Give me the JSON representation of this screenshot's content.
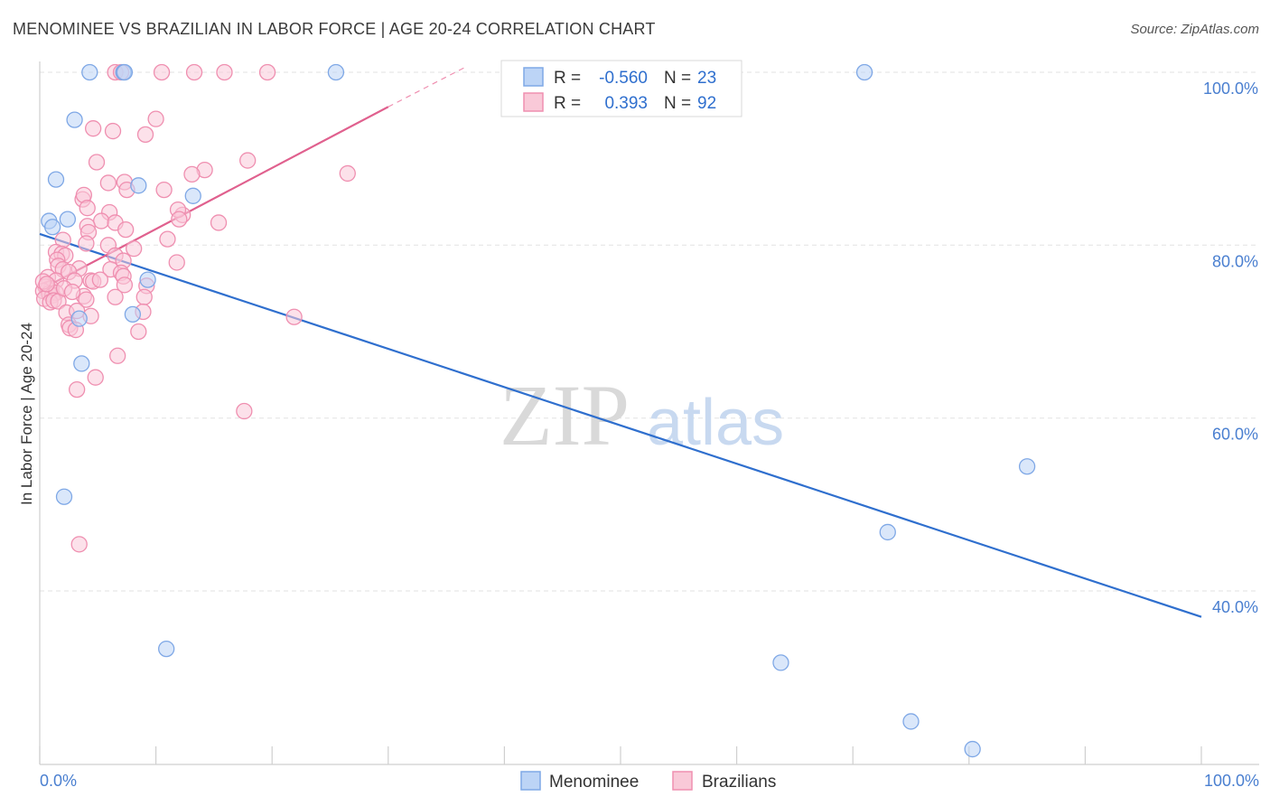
{
  "title": "MENOMINEE VS BRAZILIAN IN LABOR FORCE | AGE 20-24 CORRELATION CHART",
  "source": "Source: ZipAtlas.com",
  "watermark": {
    "zip": "ZIP",
    "atlas": "atlas"
  },
  "colors": {
    "blue": "#2f6fce",
    "blue_fill": "#bcd4f6",
    "blue_stroke": "#7fa8e6",
    "pink": "#e0608e",
    "pink_fill": "#f9c9d8",
    "pink_stroke": "#ef8fb0",
    "tick": "#4a7fd0",
    "grid": "#e6e6e6"
  },
  "legend": {
    "rows": [
      {
        "r_label": "R = ",
        "r_value": "-0.560",
        "n_label": "N = ",
        "n_value": "23"
      },
      {
        "r_label": "R = ",
        "r_value": "0.393",
        "n_label": "N = ",
        "n_value": "92"
      }
    ]
  },
  "bottom_legend": [
    "Menominee",
    "Brazilians"
  ],
  "chart_data": {
    "type": "scatter",
    "title": "MENOMINEE VS BRAZILIAN IN LABOR FORCE | AGE 20-24 CORRELATION CHART",
    "xlabel": "",
    "ylabel": "In Labor Force | Age 20-24",
    "xlim": [
      0,
      100
    ],
    "ylim": [
      20,
      102
    ],
    "x_tick_labels": [
      "0.0%",
      "100.0%"
    ],
    "y_ticks": [
      {
        "value": 100,
        "label": "100.0%"
      },
      {
        "value": 80,
        "label": "80.0%"
      },
      {
        "value": 60,
        "label": "60.0%"
      },
      {
        "value": 40,
        "label": "40.0%"
      }
    ],
    "series": [
      {
        "name": "Menominee",
        "r": -0.56,
        "n": 23,
        "trend": {
          "x": [
            0,
            100
          ],
          "y": [
            81.3,
            37.0
          ]
        },
        "points": [
          [
            4.3,
            100
          ],
          [
            7.2,
            100
          ],
          [
            25.5,
            100
          ],
          [
            71,
            100
          ],
          [
            3.0,
            94.5
          ],
          [
            1.4,
            87.6
          ],
          [
            8.5,
            86.9
          ],
          [
            13.2,
            85.7
          ],
          [
            0.8,
            82.8
          ],
          [
            1.1,
            82.1
          ],
          [
            2.4,
            83.0
          ],
          [
            9.3,
            76.0
          ],
          [
            8.0,
            72.0
          ],
          [
            3.4,
            71.5
          ],
          [
            3.6,
            66.3
          ],
          [
            2.1,
            50.9
          ],
          [
            10.9,
            33.3
          ],
          [
            85,
            54.4
          ],
          [
            73,
            46.8
          ],
          [
            63.8,
            31.7
          ],
          [
            75,
            24.9
          ],
          [
            80.3,
            21.7
          ],
          [
            7.3,
            100
          ]
        ]
      },
      {
        "name": "Brazilians",
        "r": 0.393,
        "n": 92,
        "trend": {
          "x": [
            0,
            30
          ],
          "y": [
            74.8,
            96.0
          ]
        },
        "trend_dashed": {
          "x": [
            30,
            36.5
          ],
          "y": [
            96.0,
            100.5
          ]
        },
        "points": [
          [
            6.5,
            100
          ],
          [
            7.0,
            100
          ],
          [
            10.5,
            100
          ],
          [
            13.3,
            100
          ],
          [
            15.9,
            100
          ],
          [
            19.6,
            100
          ],
          [
            10.0,
            94.6
          ],
          [
            4.6,
            93.5
          ],
          [
            6.3,
            93.2
          ],
          [
            9.1,
            92.8
          ],
          [
            4.9,
            89.6
          ],
          [
            14.2,
            88.7
          ],
          [
            13.1,
            88.2
          ],
          [
            17.9,
            89.8
          ],
          [
            26.5,
            88.3
          ],
          [
            5.9,
            87.2
          ],
          [
            7.3,
            87.3
          ],
          [
            7.5,
            86.4
          ],
          [
            10.7,
            86.4
          ],
          [
            3.7,
            85.3
          ],
          [
            3.8,
            85.8
          ],
          [
            4.1,
            84.3
          ],
          [
            6.0,
            83.8
          ],
          [
            12.3,
            83.5
          ],
          [
            11.9,
            84.1
          ],
          [
            12.0,
            83.0
          ],
          [
            15.4,
            82.6
          ],
          [
            5.3,
            82.8
          ],
          [
            6.5,
            82.6
          ],
          [
            7.4,
            81.8
          ],
          [
            4.1,
            82.2
          ],
          [
            4.2,
            81.5
          ],
          [
            2.0,
            80.6
          ],
          [
            4.0,
            80.2
          ],
          [
            5.9,
            80.0
          ],
          [
            8.1,
            79.6
          ],
          [
            11.0,
            80.7
          ],
          [
            1.4,
            79.2
          ],
          [
            1.9,
            79.0
          ],
          [
            2.2,
            78.8
          ],
          [
            1.5,
            78.3
          ],
          [
            6.5,
            78.8
          ],
          [
            7.2,
            78.2
          ],
          [
            11.8,
            78.0
          ],
          [
            1.6,
            77.6
          ],
          [
            2.0,
            77.2
          ],
          [
            3.4,
            77.3
          ],
          [
            6.1,
            77.2
          ],
          [
            2.5,
            76.9
          ],
          [
            7.0,
            76.8
          ],
          [
            7.2,
            76.4
          ],
          [
            0.7,
            76.3
          ],
          [
            1.4,
            75.9
          ],
          [
            3.0,
            75.9
          ],
          [
            4.4,
            75.9
          ],
          [
            4.6,
            75.8
          ],
          [
            0.5,
            75.2
          ],
          [
            0.7,
            74.9
          ],
          [
            1.0,
            75.0
          ],
          [
            0.3,
            74.7
          ],
          [
            0.8,
            74.4
          ],
          [
            1.1,
            74.2
          ],
          [
            1.4,
            74.5
          ],
          [
            7.3,
            75.4
          ],
          [
            9.2,
            75.3
          ],
          [
            3.8,
            74.1
          ],
          [
            0.4,
            73.8
          ],
          [
            0.9,
            73.4
          ],
          [
            1.2,
            73.6
          ],
          [
            1.6,
            73.5
          ],
          [
            4.0,
            73.7
          ],
          [
            6.5,
            74.0
          ],
          [
            9.0,
            74.0
          ],
          [
            2.3,
            72.2
          ],
          [
            3.2,
            72.4
          ],
          [
            4.4,
            71.8
          ],
          [
            8.9,
            72.3
          ],
          [
            21.9,
            71.7
          ],
          [
            2.5,
            70.8
          ],
          [
            2.6,
            70.4
          ],
          [
            3.1,
            70.2
          ],
          [
            8.5,
            70.0
          ],
          [
            6.7,
            67.2
          ],
          [
            4.8,
            64.7
          ],
          [
            3.2,
            63.3
          ],
          [
            17.6,
            60.8
          ],
          [
            3.4,
            45.4
          ],
          [
            0.3,
            75.8
          ],
          [
            0.6,
            75.5
          ],
          [
            2.1,
            75.0
          ],
          [
            5.2,
            76.0
          ],
          [
            2.8,
            74.6
          ]
        ]
      }
    ]
  }
}
